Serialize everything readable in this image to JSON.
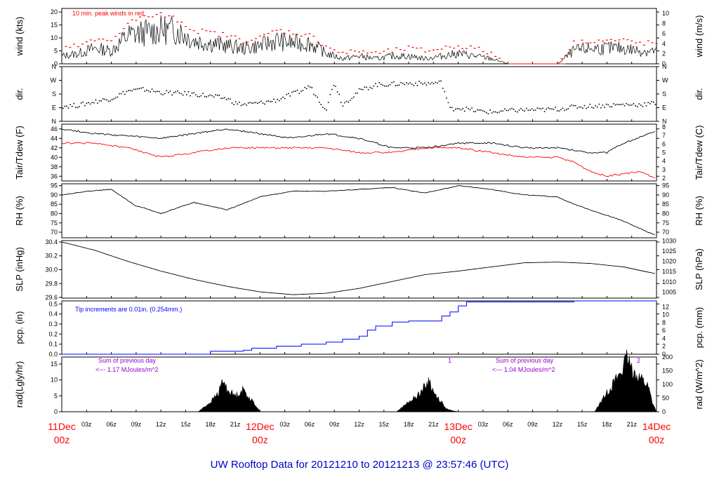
{
  "title": "UW Rooftop Data for 20121210  to  20121213 @ 23:57:46  (UTC)",
  "colors": {
    "title": "#0000cc",
    "day_label": "#ff0000",
    "peak": "#ff0000",
    "dew": "#ff0000",
    "precip": "#0000ff",
    "purple": "#9900cc",
    "line": "#000000"
  },
  "x_axis": {
    "hours_total": 72,
    "day_labels": [
      {
        "hour": 0,
        "date": "11Dec",
        "time": "00z"
      },
      {
        "hour": 24,
        "date": "12Dec",
        "time": "00z"
      },
      {
        "hour": 48,
        "date": "13Dec",
        "time": "00z"
      },
      {
        "hour": 72,
        "date": "14Dec",
        "time": "00z"
      }
    ],
    "hour_labels": [
      "03z",
      "06z",
      "09z",
      "12z",
      "15z",
      "18z",
      "21z"
    ]
  },
  "chart_data": [
    {
      "type": "line",
      "id": "wind",
      "ylabel_left": "wind (kts)",
      "ylabel_right": "wind (m/s)",
      "left_ticks": [
        0,
        5,
        10,
        15,
        20
      ],
      "right_ticks": [
        0,
        2,
        4,
        6,
        8,
        10
      ],
      "ylim": [
        0,
        21.4
      ],
      "annotation": "10 min. peak winds in red",
      "series": [
        {
          "name": "wind speed",
          "x": [
            0,
            2,
            4,
            6,
            8,
            10,
            12,
            14,
            16,
            18,
            20,
            22,
            24,
            26,
            28,
            30,
            32,
            34,
            36,
            38,
            40,
            42,
            44,
            46,
            48,
            50,
            52,
            54,
            56,
            58,
            60,
            62,
            64,
            66,
            68,
            70,
            72
          ],
          "values": [
            3,
            4,
            6,
            5,
            11,
            12,
            13,
            13,
            9,
            8,
            7,
            6,
            7,
            9,
            8,
            8,
            4,
            2,
            3,
            2,
            3,
            3,
            2,
            3,
            4,
            3,
            2,
            0,
            0,
            0,
            0,
            5,
            6,
            6,
            6,
            5,
            5
          ]
        },
        {
          "name": "10 min peak",
          "x": [
            0,
            2,
            4,
            6,
            8,
            10,
            12,
            14,
            16,
            18,
            20,
            22,
            24,
            26,
            28,
            30,
            32,
            34,
            36,
            38,
            40,
            42,
            44,
            46,
            48,
            50,
            52,
            54,
            56,
            58,
            60,
            62,
            64,
            66,
            68,
            70,
            72
          ],
          "values": [
            6,
            7,
            9,
            9,
            16,
            18,
            19,
            17,
            13,
            12,
            11,
            9,
            10,
            13,
            12,
            11,
            7,
            4,
            5,
            4,
            5,
            6,
            5,
            6,
            7,
            6,
            4,
            0,
            0,
            0,
            0,
            8,
            9,
            9,
            9,
            8,
            8
          ]
        }
      ]
    },
    {
      "type": "scatter",
      "id": "dir",
      "ylabel": "dir.",
      "ticks": [
        "N",
        "E",
        "S",
        "W",
        "N"
      ],
      "ylim": [
        0,
        360
      ],
      "series": [
        {
          "name": "direction",
          "x": [
            0,
            2,
            4,
            6,
            8,
            10,
            12,
            14,
            16,
            18,
            20,
            21,
            22,
            24,
            26,
            28,
            29,
            30,
            31,
            32,
            33,
            34,
            36,
            38,
            40,
            42,
            44,
            46,
            47,
            48,
            50,
            52,
            54,
            56,
            58,
            60,
            62,
            64,
            66,
            68,
            70,
            72
          ],
          "values": [
            100,
            105,
            130,
            150,
            200,
            210,
            190,
            185,
            180,
            165,
            150,
            120,
            110,
            120,
            140,
            180,
            200,
            235,
            150,
            80,
            260,
            110,
            200,
            240,
            245,
            250,
            248,
            255,
            80,
            90,
            70,
            60,
            70,
            75,
            75,
            80,
            95,
            100,
            105,
            110,
            110,
            120
          ]
        }
      ]
    },
    {
      "type": "line",
      "id": "temp",
      "ylabel_left": "Tair/Tdew (F)",
      "ylabel_right": "Tair/Tdew (C)",
      "left_ticks": [
        36,
        38,
        40,
        42,
        44,
        46
      ],
      "right_ticks": [
        2,
        3,
        4,
        5,
        6,
        7,
        8
      ],
      "ylim": [
        35,
        47
      ],
      "series": [
        {
          "name": "Tair",
          "x": [
            0,
            4,
            8,
            12,
            16,
            20,
            24,
            28,
            32,
            36,
            40,
            44,
            48,
            52,
            56,
            60,
            64,
            66,
            68,
            72
          ],
          "values": [
            46,
            45,
            44.5,
            44,
            45,
            46,
            45,
            44,
            45,
            44,
            42,
            42,
            43,
            43,
            42,
            42,
            41,
            41,
            43,
            45.5
          ]
        },
        {
          "name": "Tdew",
          "x": [
            0,
            4,
            8,
            12,
            16,
            20,
            24,
            28,
            32,
            36,
            40,
            44,
            48,
            52,
            56,
            60,
            62,
            64,
            66,
            68,
            70,
            72
          ],
          "values": [
            43,
            43,
            42,
            40,
            41,
            42,
            42,
            42,
            42,
            41,
            41,
            42,
            42,
            41,
            40,
            40,
            39,
            37,
            36,
            36.5,
            37,
            35.5
          ]
        }
      ]
    },
    {
      "type": "line",
      "id": "rh",
      "ylabel": "RH (%)",
      "ticks": [
        70,
        75,
        80,
        85,
        90,
        95
      ],
      "ylim": [
        67,
        96
      ],
      "series": [
        {
          "name": "RH",
          "x": [
            0,
            3,
            6,
            9,
            10,
            12,
            16,
            20,
            24,
            28,
            32,
            36,
            40,
            44,
            48,
            52,
            56,
            60,
            62,
            64,
            66,
            68,
            70,
            72
          ],
          "values": [
            90,
            92,
            93,
            84,
            83,
            80,
            86,
            82,
            89,
            92,
            92,
            93,
            94,
            91,
            95,
            93,
            90,
            89,
            85,
            82,
            79,
            76,
            72,
            68
          ]
        }
      ]
    },
    {
      "type": "line",
      "id": "slp",
      "ylabel_left": "SLP (inHg)",
      "ylabel_right": "SLP (hPa)",
      "left_ticks": [
        29.6,
        29.8,
        30.0,
        30.2,
        30.4
      ],
      "right_ticks": [
        1005,
        1010,
        1015,
        1020,
        1025,
        1030
      ],
      "ylim": [
        29.59,
        30.42
      ],
      "series": [
        {
          "name": "pressure",
          "x": [
            0,
            4,
            8,
            12,
            16,
            20,
            24,
            28,
            32,
            36,
            40,
            44,
            48,
            52,
            56,
            60,
            64,
            68,
            72
          ],
          "values": [
            30.4,
            30.28,
            30.12,
            29.98,
            29.86,
            29.76,
            29.68,
            29.64,
            29.66,
            29.73,
            29.83,
            29.93,
            29.98,
            30.04,
            30.1,
            30.11,
            30.09,
            30.04,
            29.94
          ]
        }
      ]
    },
    {
      "type": "line",
      "id": "precip",
      "ylabel_left": "pcp. (in)",
      "ylabel_right": "pcp. (mm)",
      "left_ticks": [
        0.0,
        0.1,
        0.2,
        0.3,
        0.4,
        0.5
      ],
      "right_ticks": [
        0,
        2,
        4,
        6,
        8,
        10,
        12
      ],
      "ylim": [
        0,
        0.53
      ],
      "annotation": "Tip increments are 0.01in. (0.254mm.)",
      "series": [
        {
          "name": "cumulative precip",
          "x": [
            0,
            17,
            18,
            22,
            23,
            26,
            29,
            32,
            34,
            36,
            37,
            38,
            40,
            42,
            46,
            47,
            48,
            49,
            50,
            60,
            62,
            66,
            72
          ],
          "values": [
            0,
            0,
            0.03,
            0.04,
            0.06,
            0.08,
            0.1,
            0.12,
            0.15,
            0.18,
            0.24,
            0.28,
            0.32,
            0.33,
            0.38,
            0.42,
            0.48,
            0.52,
            0.52,
            0.52,
            0.53,
            0.53,
            0.53
          ]
        }
      ]
    },
    {
      "type": "area",
      "id": "rad",
      "ylabel_left": "rad(Lgly/hr)",
      "ylabel_right": "rad (W/m^2)",
      "left_ticks": [
        0,
        5,
        10,
        15
      ],
      "right_ticks": [
        0,
        50,
        100,
        150,
        200
      ],
      "ylim": [
        0,
        17.2
      ],
      "annotations": [
        {
          "line1": "Sum of previous day",
          "line2": "<--- 1.17 MJoules/m^2"
        },
        {
          "line1": "Sum of previous day",
          "line2": "<--- 1.04 MJoules/m^2"
        }
      ],
      "marker_labels": [
        "1",
        "2"
      ],
      "series": [
        {
          "name": "solar radiation",
          "x": [
            0,
            16.5,
            17,
            18,
            19,
            19.5,
            20,
            21,
            22,
            22.5,
            23.5,
            24,
            40.5,
            41,
            42,
            43,
            44,
            44.5,
            45,
            46,
            46.5,
            47,
            48,
            64.5,
            65,
            66,
            67,
            68,
            68.5,
            69,
            70,
            71,
            71.5,
            72
          ],
          "values": [
            0,
            0,
            1,
            3,
            6,
            10,
            7,
            5,
            7,
            5,
            2,
            0,
            0,
            1,
            3,
            5,
            8,
            10,
            6,
            3,
            1,
            0.5,
            0,
            0,
            2,
            6,
            10,
            14,
            17,
            13,
            11,
            8,
            3,
            0
          ]
        }
      ]
    }
  ]
}
